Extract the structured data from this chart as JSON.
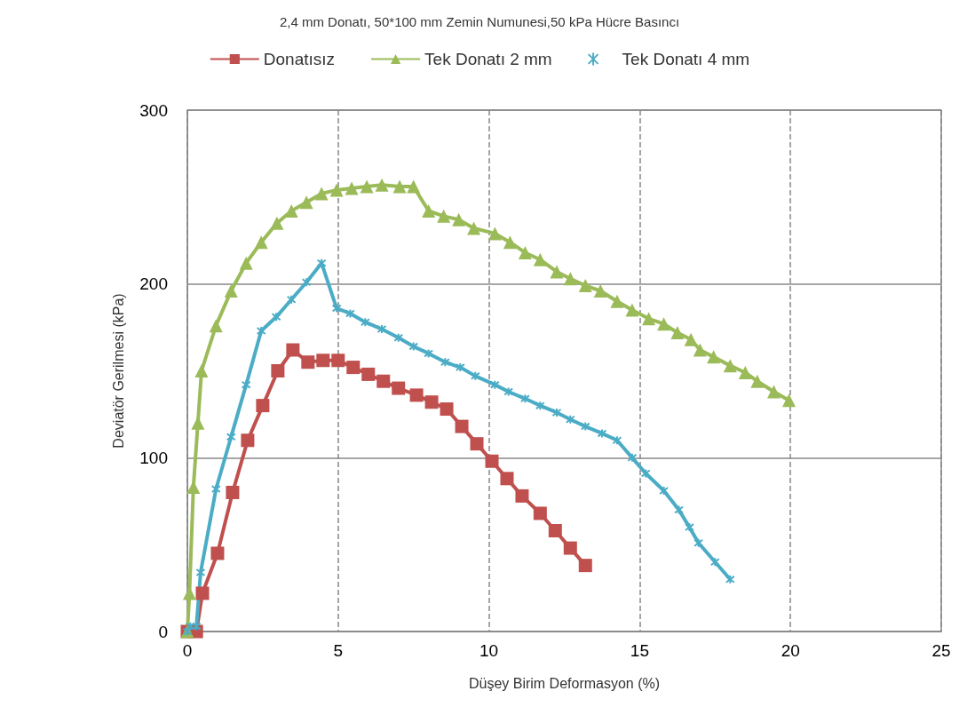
{
  "chart_data": {
    "type": "line",
    "title": "2,4 mm Donatı, 50*100 mm Zemin Numunesi,50 kPa Hücre Basıncı",
    "xlabel": "Düşey Birim Deformasyon (%)",
    "ylabel": "Deviatör Gerilmesi (kPa)",
    "xlim": [
      0,
      25
    ],
    "xticks": [
      0,
      5,
      10,
      15,
      20,
      25
    ],
    "ylim": [
      0,
      300
    ],
    "yticks": [
      0,
      100,
      200,
      300
    ],
    "grid": true,
    "legend": "top",
    "line_style": "solid",
    "series": [
      {
        "name": "Donatısız",
        "color": "#c0504d",
        "marker": "square",
        "x": [
          0,
          0.3,
          0.5,
          1,
          1.5,
          2,
          2.5,
          3,
          3.5,
          4,
          4.5,
          5,
          5.5,
          6,
          6.5,
          7,
          7.6,
          8.1,
          8.6,
          9.1,
          9.6,
          10.1,
          10.6,
          11.1,
          11.7,
          12.2,
          12.7,
          13.2
        ],
        "values": [
          0,
          0,
          22,
          45,
          80,
          110,
          130,
          150,
          162,
          155,
          156,
          156,
          152,
          148,
          144,
          140,
          136,
          132,
          128,
          118,
          108,
          98,
          88,
          78,
          68,
          58,
          48,
          38
        ]
      },
      {
        "name": "Tek Donatı 2 mm",
        "color": "#9bbb59",
        "marker": "triangle",
        "x": [
          0,
          0.07,
          0.2,
          0.35,
          0.47,
          0.95,
          1.45,
          1.95,
          2.45,
          2.97,
          3.45,
          3.95,
          4.45,
          4.95,
          5.45,
          5.95,
          6.45,
          7.04,
          7.5,
          8.0,
          8.5,
          9.0,
          9.5,
          10.2,
          10.7,
          11.2,
          11.7,
          12.25,
          12.7,
          13.2,
          13.7,
          14.25,
          14.75,
          15.3,
          15.8,
          16.25,
          16.7,
          17.0,
          17.45,
          18.0,
          18.5,
          18.9,
          19.45,
          19.95
        ],
        "values": [
          0,
          22,
          83,
          120,
          150,
          176,
          196,
          212,
          224,
          235,
          242,
          247,
          252,
          254,
          255,
          256,
          257,
          256,
          256,
          242,
          239,
          237,
          232,
          229,
          224,
          218,
          214,
          207,
          203,
          199,
          196,
          190,
          185,
          180,
          177,
          172,
          168,
          162,
          158,
          153,
          149,
          144,
          138,
          133
        ]
      },
      {
        "name": "Tek Donatı 4 mm",
        "color": "#4bacc6",
        "marker": "cross",
        "x": [
          0,
          0.1,
          0.3,
          0.44,
          0.95,
          1.45,
          1.95,
          2.45,
          2.95,
          3.45,
          3.95,
          4.45,
          4.95,
          5.4,
          5.9,
          6.45,
          7.0,
          7.5,
          8.0,
          8.55,
          9.05,
          9.55,
          10.2,
          10.65,
          11.2,
          11.7,
          12.25,
          12.7,
          13.2,
          13.75,
          14.25,
          14.75,
          15.2,
          15.8,
          16.3,
          16.65,
          16.95,
          17.5,
          18.0
        ],
        "values": [
          0,
          3,
          3,
          34,
          82,
          112,
          142,
          173,
          181,
          191,
          201,
          212,
          186,
          183,
          178,
          174,
          169,
          164,
          160,
          155,
          152,
          147,
          142,
          138,
          134,
          130,
          126,
          122,
          118,
          114,
          110,
          100,
          91,
          81,
          70,
          60,
          51,
          40,
          30
        ]
      }
    ]
  }
}
